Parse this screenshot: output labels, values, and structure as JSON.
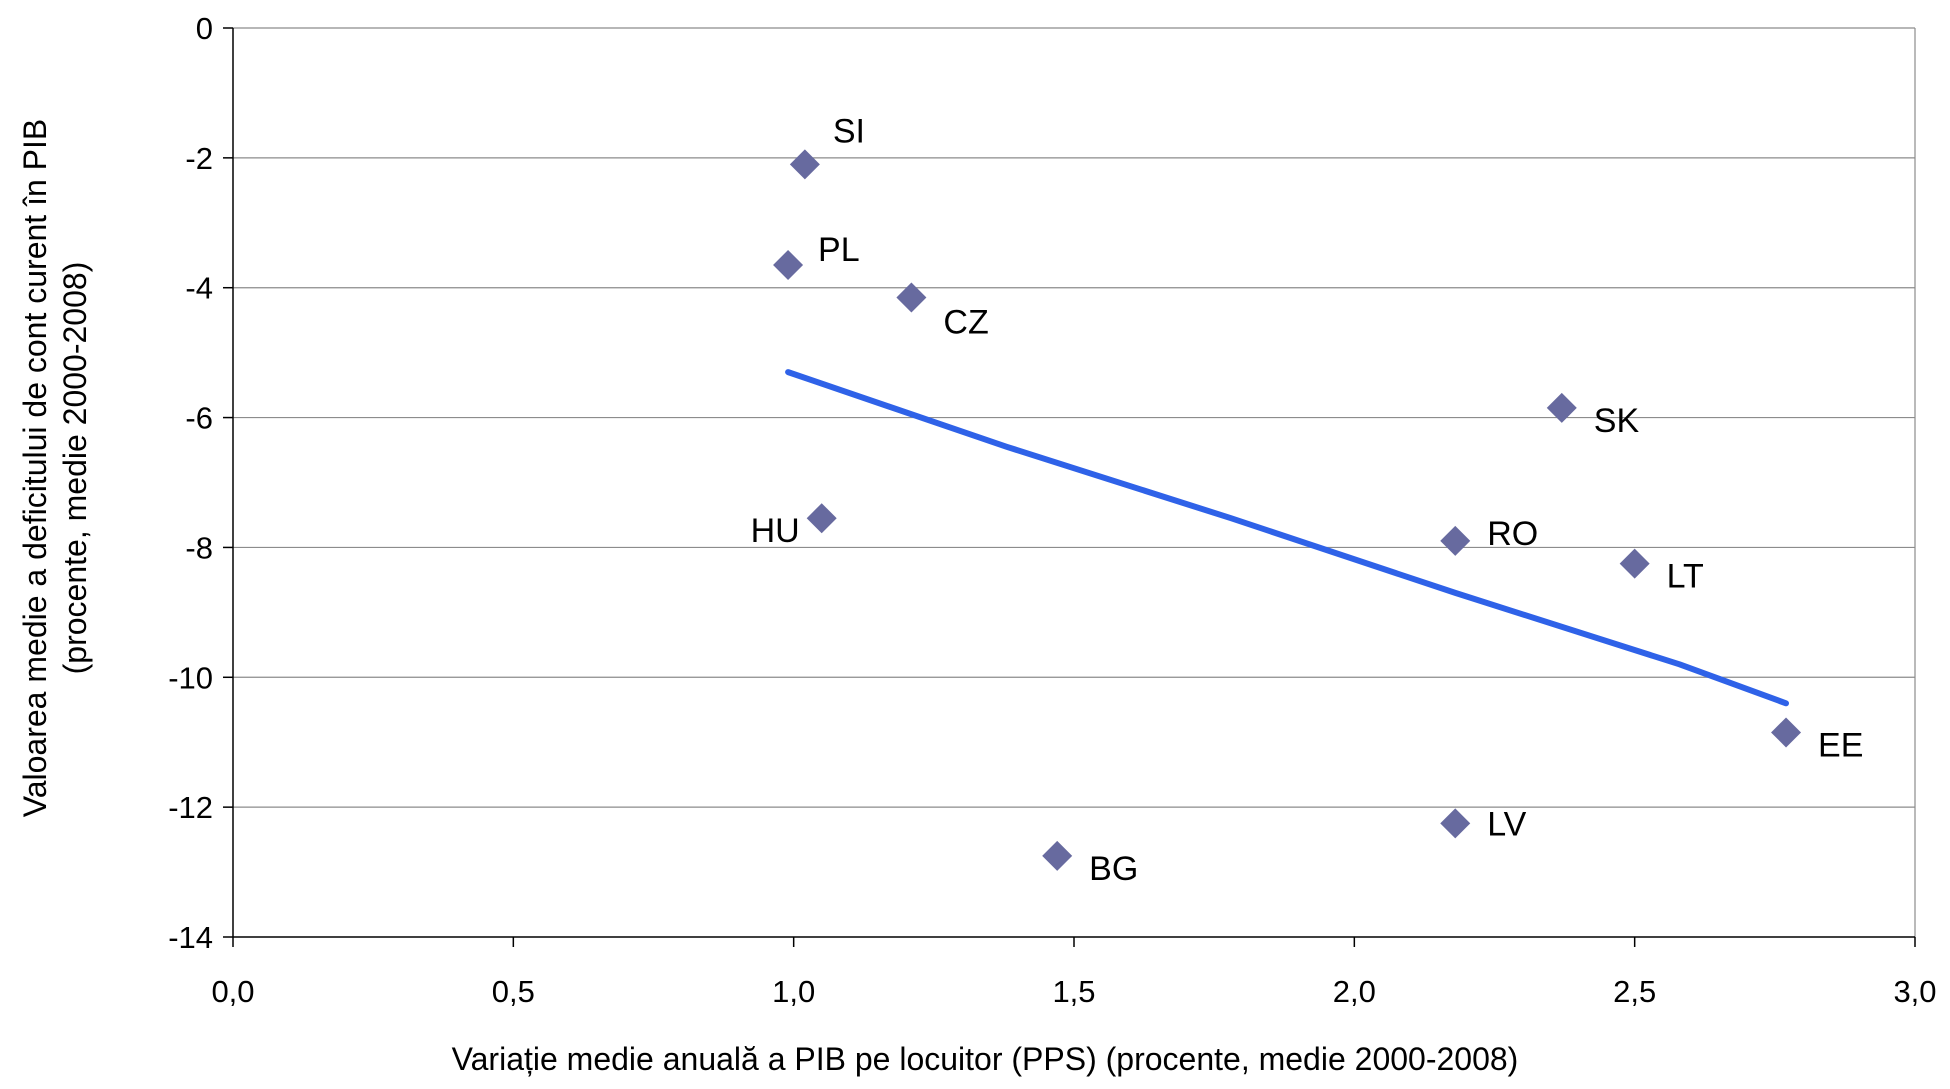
{
  "chart_data": {
    "type": "scatter",
    "xlabel": "Variație medie anuală a PIB pe locuitor (PPS)  (procente, medie 2000-2008)",
    "ylabel_line1": "Valoarea medie a deficitului de cont curent în PIB",
    "ylabel_line2": "(procente, medie 2000-2008)",
    "xlim": [
      0,
      3
    ],
    "ylim": [
      -14,
      0
    ],
    "x_ticks": [
      {
        "value": 0,
        "label": "0,0"
      },
      {
        "value": 0.5,
        "label": "0,5"
      },
      {
        "value": 1,
        "label": "1,0"
      },
      {
        "value": 1.5,
        "label": "1,5"
      },
      {
        "value": 2,
        "label": "2,0"
      },
      {
        "value": 2.5,
        "label": "2,5"
      },
      {
        "value": 3,
        "label": "3,0"
      }
    ],
    "y_ticks": [
      {
        "value": 0,
        "label": "0"
      },
      {
        "value": -2,
        "label": "-2"
      },
      {
        "value": -4,
        "label": "-4"
      },
      {
        "value": -6,
        "label": "-6"
      },
      {
        "value": -8,
        "label": "-8"
      },
      {
        "value": -10,
        "label": "-10"
      },
      {
        "value": -12,
        "label": "-12"
      },
      {
        "value": -14,
        "label": "-14"
      }
    ],
    "grid": "horizontal",
    "marker_color": "#676a9f",
    "trend_color": "#2f62e8",
    "points": [
      {
        "label": "SI",
        "x": 1.02,
        "y": -2.1
      },
      {
        "label": "PL",
        "x": 0.99,
        "y": -3.65
      },
      {
        "label": "CZ",
        "x": 1.21,
        "y": -4.15
      },
      {
        "label": "SK",
        "x": 2.37,
        "y": -5.85
      },
      {
        "label": "HU",
        "x": 1.05,
        "y": -7.55
      },
      {
        "label": "RO",
        "x": 2.18,
        "y": -7.9
      },
      {
        "label": "LT",
        "x": 2.5,
        "y": -8.25
      },
      {
        "label": "EE",
        "x": 2.77,
        "y": -10.85
      },
      {
        "label": "LV",
        "x": 2.18,
        "y": -12.25
      },
      {
        "label": "BG",
        "x": 1.47,
        "y": -12.75
      }
    ],
    "trendline": [
      {
        "x": 0.99,
        "y": -5.3
      },
      {
        "x": 1.38,
        "y": -6.45
      },
      {
        "x": 1.78,
        "y": -7.55
      },
      {
        "x": 2.18,
        "y": -8.7
      },
      {
        "x": 2.58,
        "y": -9.8
      },
      {
        "x": 2.77,
        "y": -10.4
      }
    ]
  }
}
